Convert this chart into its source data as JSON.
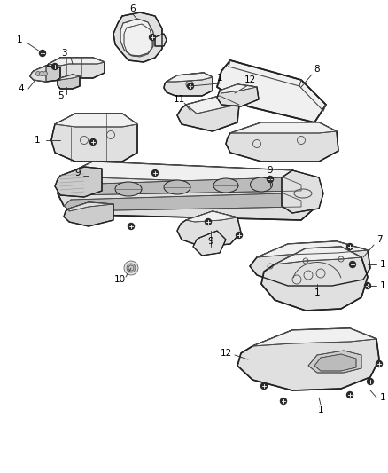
{
  "bg": "#ffffff",
  "lc": "#4a4a4a",
  "lc_dark": "#222222",
  "lc_thin": "#666666",
  "fc_light": "#f0f0f0",
  "fc_mid": "#e0e0e0",
  "fc_dark": "#cccccc",
  "fc_darker": "#bbbbbb",
  "fig_w": 4.38,
  "fig_h": 5.33,
  "dpi": 100
}
